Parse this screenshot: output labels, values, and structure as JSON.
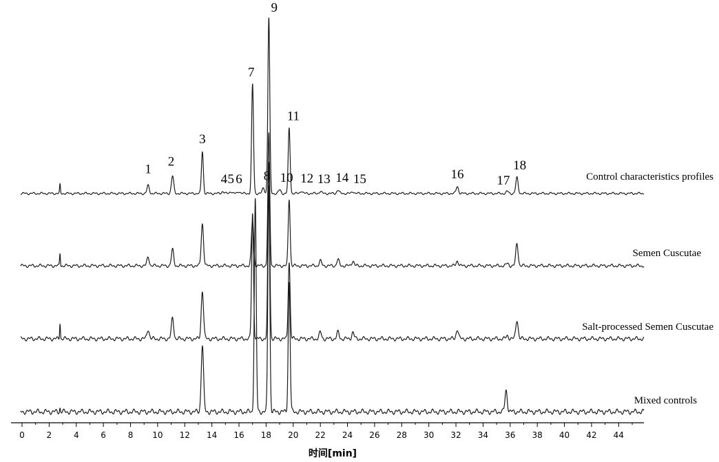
{
  "chart_data": {
    "type": "line",
    "title": "",
    "xlabel": "时间[min]",
    "ylabel": "",
    "xlim": [
      0,
      45
    ],
    "x_ticks": [
      0,
      2,
      4,
      6,
      8,
      10,
      12,
      14,
      16,
      18,
      20,
      22,
      24,
      26,
      28,
      30,
      32,
      34,
      36,
      38,
      40,
      42,
      44
    ],
    "grid": false,
    "legend": "labels placed beside each trace",
    "series": [
      {
        "name": "Control characteristics profiles",
        "peaks": [
          {
            "label": "1",
            "rt": 9.3,
            "h": 0.045
          },
          {
            "label": "2",
            "rt": 11.1,
            "h": 0.1
          },
          {
            "label": "3",
            "rt": 13.3,
            "h": 0.24
          },
          {
            "label": "4",
            "rt": 14.8,
            "h": 0.012
          },
          {
            "label": "5",
            "rt": 15.4,
            "h": 0.012
          },
          {
            "label": "6",
            "rt": 16.0,
            "h": 0.012
          },
          {
            "label": "7",
            "rt": 17.0,
            "h": 0.62
          },
          {
            "label": "8",
            "rt": 17.8,
            "h": 0.03
          },
          {
            "label": "9",
            "rt": 18.2,
            "h": 1.0
          },
          {
            "label": "10",
            "rt": 19.0,
            "h": 0.02
          },
          {
            "label": "11",
            "rt": 19.7,
            "h": 0.37
          },
          {
            "label": "12",
            "rt": 20.6,
            "h": 0.015
          },
          {
            "label": "13",
            "rt": 22.0,
            "h": 0.012
          },
          {
            "label": "14",
            "rt": 23.3,
            "h": 0.02
          },
          {
            "label": "15",
            "rt": 24.4,
            "h": 0.012
          },
          {
            "label": "16",
            "rt": 32.1,
            "h": 0.04
          },
          {
            "label": "17",
            "rt": 35.8,
            "h": 0.012
          },
          {
            "label": "18",
            "rt": 36.5,
            "h": 0.09
          }
        ]
      },
      {
        "name": "Semen Cuscutae",
        "peaks": [
          {
            "label": "",
            "rt": 9.3,
            "h": 0.035
          },
          {
            "label": "",
            "rt": 11.1,
            "h": 0.065
          },
          {
            "label": "",
            "rt": 13.3,
            "h": 0.17
          },
          {
            "label": "",
            "rt": 17.0,
            "h": 0.18
          },
          {
            "label": "",
            "rt": 18.2,
            "h": 0.53
          },
          {
            "label": "",
            "rt": 19.7,
            "h": 0.27
          },
          {
            "label": "",
            "rt": 22.0,
            "h": 0.02
          },
          {
            "label": "",
            "rt": 23.3,
            "h": 0.025
          },
          {
            "label": "",
            "rt": 24.4,
            "h": 0.02
          },
          {
            "label": "",
            "rt": 32.1,
            "h": 0.02
          },
          {
            "label": "",
            "rt": 35.8,
            "h": 0.01
          },
          {
            "label": "",
            "rt": 36.5,
            "h": 0.09
          }
        ]
      },
      {
        "name": "Salt-processed Semen Cuscutae",
        "peaks": [
          {
            "label": "",
            "rt": 9.3,
            "h": 0.03
          },
          {
            "label": "",
            "rt": 11.1,
            "h": 0.065
          },
          {
            "label": "",
            "rt": 13.3,
            "h": 0.15
          },
          {
            "label": "",
            "rt": 17.0,
            "h": 0.39
          },
          {
            "label": "",
            "rt": 18.2,
            "h": 0.55
          },
          {
            "label": "",
            "rt": 19.7,
            "h": 0.24
          },
          {
            "label": "",
            "rt": 22.0,
            "h": 0.02
          },
          {
            "label": "",
            "rt": 23.3,
            "h": 0.02
          },
          {
            "label": "",
            "rt": 24.4,
            "h": 0.02
          },
          {
            "label": "",
            "rt": 32.1,
            "h": 0.03
          },
          {
            "label": "",
            "rt": 35.8,
            "h": 0.01
          },
          {
            "label": "",
            "rt": 36.5,
            "h": 0.06
          }
        ]
      },
      {
        "name": "Mixed controls",
        "peaks": [
          {
            "label": "",
            "rt": 13.3,
            "h": 0.17
          },
          {
            "label": "",
            "rt": 17.2,
            "h": 0.54
          },
          {
            "label": "",
            "rt": 18.2,
            "h": 0.58
          },
          {
            "label": "",
            "rt": 19.7,
            "h": 0.33
          },
          {
            "label": "",
            "rt": 35.7,
            "h": 0.055
          }
        ]
      }
    ]
  }
}
